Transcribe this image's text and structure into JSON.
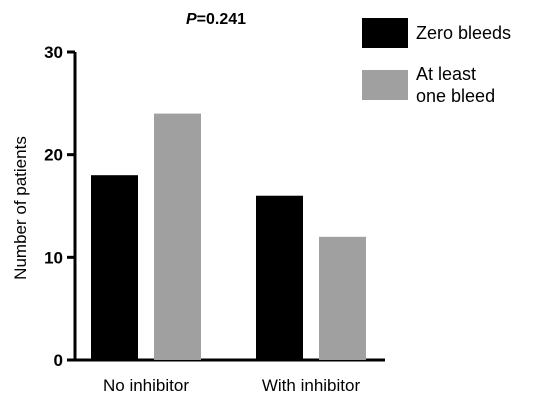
{
  "chart_data": {
    "type": "bar",
    "categories": [
      "No inhibitor",
      "With inhibitor"
    ],
    "series": [
      {
        "name": "Zero bleeds",
        "values": [
          18,
          16
        ],
        "color": "#000000"
      },
      {
        "name": "At least one bleed",
        "values": [
          24,
          12
        ],
        "color": "#a0a0a0"
      }
    ],
    "title": "",
    "annotation": {
      "italic_part": "P",
      "rest": "=0.241"
    },
    "xlabel": "",
    "ylabel": "Number of patients",
    "ylim": [
      0,
      30
    ],
    "yticks": [
      0,
      10,
      20,
      30
    ],
    "legend_lines": [
      [
        "Zero bleeds"
      ],
      [
        "At least",
        "one bleed"
      ]
    ],
    "grid": false,
    "legend_position": "top-right"
  }
}
